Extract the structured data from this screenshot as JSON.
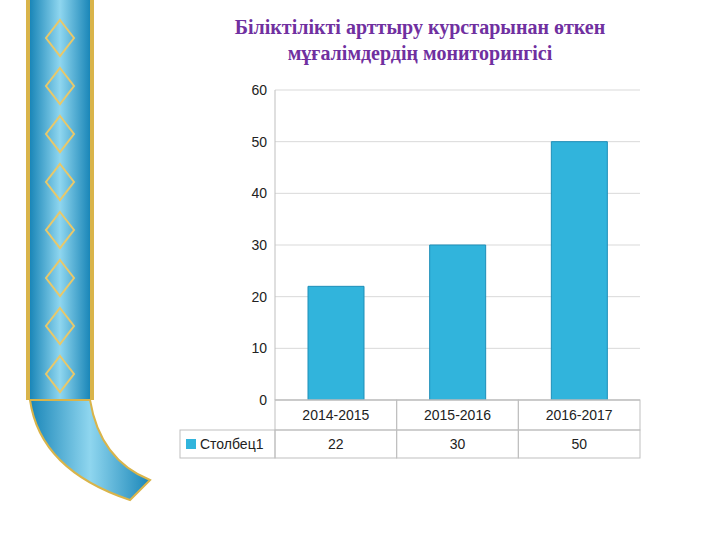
{
  "chart_data": {
    "type": "bar",
    "title": "Біліктілікті арттыру курстарынан өткен\nмұғалімдердің мониторингісі",
    "categories": [
      "2014-2015",
      "2015-2016",
      "2016-2017"
    ],
    "series": [
      {
        "name": "Столбец1",
        "color": "#31b4dc",
        "values": [
          22,
          30,
          50
        ]
      }
    ],
    "ylim": [
      0,
      60
    ],
    "yticks": [
      0,
      10,
      20,
      30,
      40,
      50,
      60
    ],
    "grid": true,
    "legend": "bottom"
  }
}
